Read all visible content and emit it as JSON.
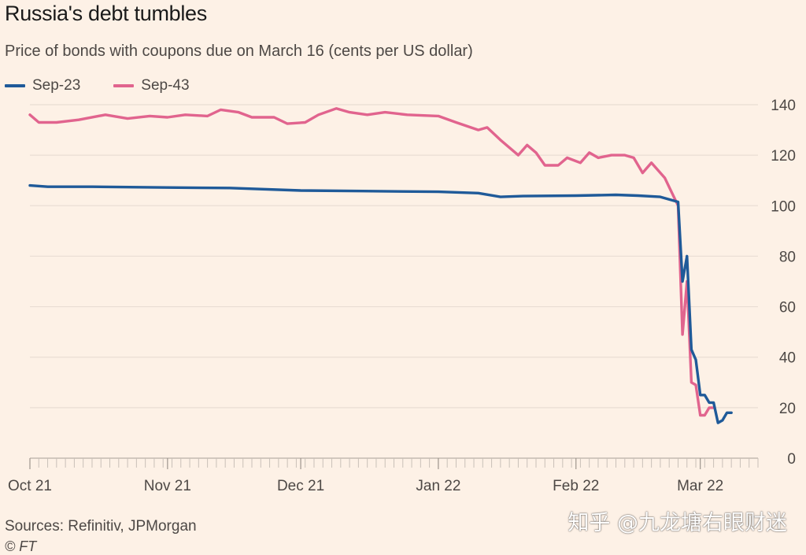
{
  "title": "Russia's debt tumbles",
  "subtitle": "Price of bonds with coupons due on March 16 (cents per US dollar)",
  "source": "Sources: Refinitiv, JPMorgan",
  "copyright": "© FT",
  "watermark": "知乎 @九龙塘右眼财迷",
  "colors": {
    "background": "#FDF1E6",
    "gridline": "#E9DED4",
    "sep23": "#1F5A99",
    "sep43": "#E1648E"
  },
  "chart_data": {
    "type": "line",
    "title": "Russia's debt tumbles",
    "subtitle": "Price of bonds with coupons due on March 16 (cents per US dollar)",
    "xlabel": "",
    "ylabel": "",
    "ylim": [
      0,
      140
    ],
    "yticks": [
      0,
      20,
      40,
      60,
      80,
      100,
      120,
      140
    ],
    "xticks": [
      {
        "label": "Oct 21",
        "date": "2021-10-01"
      },
      {
        "label": "Nov 21",
        "date": "2021-11-01"
      },
      {
        "label": "Dec 21",
        "date": "2021-12-01"
      },
      {
        "label": "Jan 22",
        "date": "2022-01-01"
      },
      {
        "label": "Feb 22",
        "date": "2022-02-01"
      },
      {
        "label": "Mar 22",
        "date": "2022-03-01"
      }
    ],
    "x_end": "2022-03-14",
    "grid": true,
    "yaxis_position": "right",
    "legend_position": "top-left",
    "series": [
      {
        "name": "Sep-23",
        "color": "#1F5A99",
        "points": [
          [
            "2021-10-01",
            108
          ],
          [
            "2021-10-05",
            107.5
          ],
          [
            "2021-10-15",
            107.5
          ],
          [
            "2021-11-01",
            107.2
          ],
          [
            "2021-11-15",
            107
          ],
          [
            "2021-12-01",
            106
          ],
          [
            "2021-12-15",
            105.8
          ],
          [
            "2022-01-01",
            105.5
          ],
          [
            "2022-01-10",
            105
          ],
          [
            "2022-01-15",
            103.5
          ],
          [
            "2022-01-20",
            103.8
          ],
          [
            "2022-02-01",
            104
          ],
          [
            "2022-02-10",
            104.3
          ],
          [
            "2022-02-15",
            104
          ],
          [
            "2022-02-20",
            103.5
          ],
          [
            "2022-02-24",
            101.5
          ],
          [
            "2022-02-25",
            70
          ],
          [
            "2022-02-26",
            80
          ],
          [
            "2022-02-27",
            43
          ],
          [
            "2022-02-28",
            39
          ],
          [
            "2022-03-01",
            25
          ],
          [
            "2022-03-02",
            25
          ],
          [
            "2022-03-03",
            22
          ],
          [
            "2022-03-04",
            22
          ],
          [
            "2022-03-05",
            14
          ],
          [
            "2022-03-06",
            15
          ],
          [
            "2022-03-07",
            18
          ],
          [
            "2022-03-08",
            18
          ]
        ]
      },
      {
        "name": "Sep-43",
        "color": "#E1648E",
        "points": [
          [
            "2021-10-01",
            136
          ],
          [
            "2021-10-03",
            133
          ],
          [
            "2021-10-07",
            133
          ],
          [
            "2021-10-12",
            134
          ],
          [
            "2021-10-18",
            136
          ],
          [
            "2021-10-23",
            134.5
          ],
          [
            "2021-10-28",
            135.5
          ],
          [
            "2021-11-01",
            135
          ],
          [
            "2021-11-05",
            136
          ],
          [
            "2021-11-10",
            135.5
          ],
          [
            "2021-11-13",
            138
          ],
          [
            "2021-11-17",
            137
          ],
          [
            "2021-11-20",
            135
          ],
          [
            "2021-11-25",
            135
          ],
          [
            "2021-11-28",
            132.5
          ],
          [
            "2021-12-02",
            133
          ],
          [
            "2021-12-05",
            136
          ],
          [
            "2021-12-09",
            138.5
          ],
          [
            "2021-12-12",
            137
          ],
          [
            "2021-12-16",
            136
          ],
          [
            "2021-12-20",
            137
          ],
          [
            "2021-12-25",
            136
          ],
          [
            "2022-01-01",
            135.5
          ],
          [
            "2022-01-05",
            133
          ],
          [
            "2022-01-10",
            130
          ],
          [
            "2022-01-12",
            131
          ],
          [
            "2022-01-15",
            126
          ],
          [
            "2022-01-19",
            120
          ],
          [
            "2022-01-21",
            124
          ],
          [
            "2022-01-23",
            121
          ],
          [
            "2022-01-25",
            116
          ],
          [
            "2022-01-28",
            116
          ],
          [
            "2022-01-30",
            119
          ],
          [
            "2022-02-02",
            117
          ],
          [
            "2022-02-04",
            121
          ],
          [
            "2022-02-06",
            119
          ],
          [
            "2022-02-09",
            120
          ],
          [
            "2022-02-12",
            120
          ],
          [
            "2022-02-14",
            119
          ],
          [
            "2022-02-16",
            113
          ],
          [
            "2022-02-18",
            117
          ],
          [
            "2022-02-21",
            111
          ],
          [
            "2022-02-24",
            100
          ],
          [
            "2022-02-25",
            49
          ],
          [
            "2022-02-26",
            70
          ],
          [
            "2022-02-27",
            30
          ],
          [
            "2022-02-28",
            29
          ],
          [
            "2022-03-01",
            17
          ],
          [
            "2022-03-02",
            17
          ],
          [
            "2022-03-03",
            20
          ],
          [
            "2022-03-04",
            20
          ]
        ]
      }
    ]
  }
}
